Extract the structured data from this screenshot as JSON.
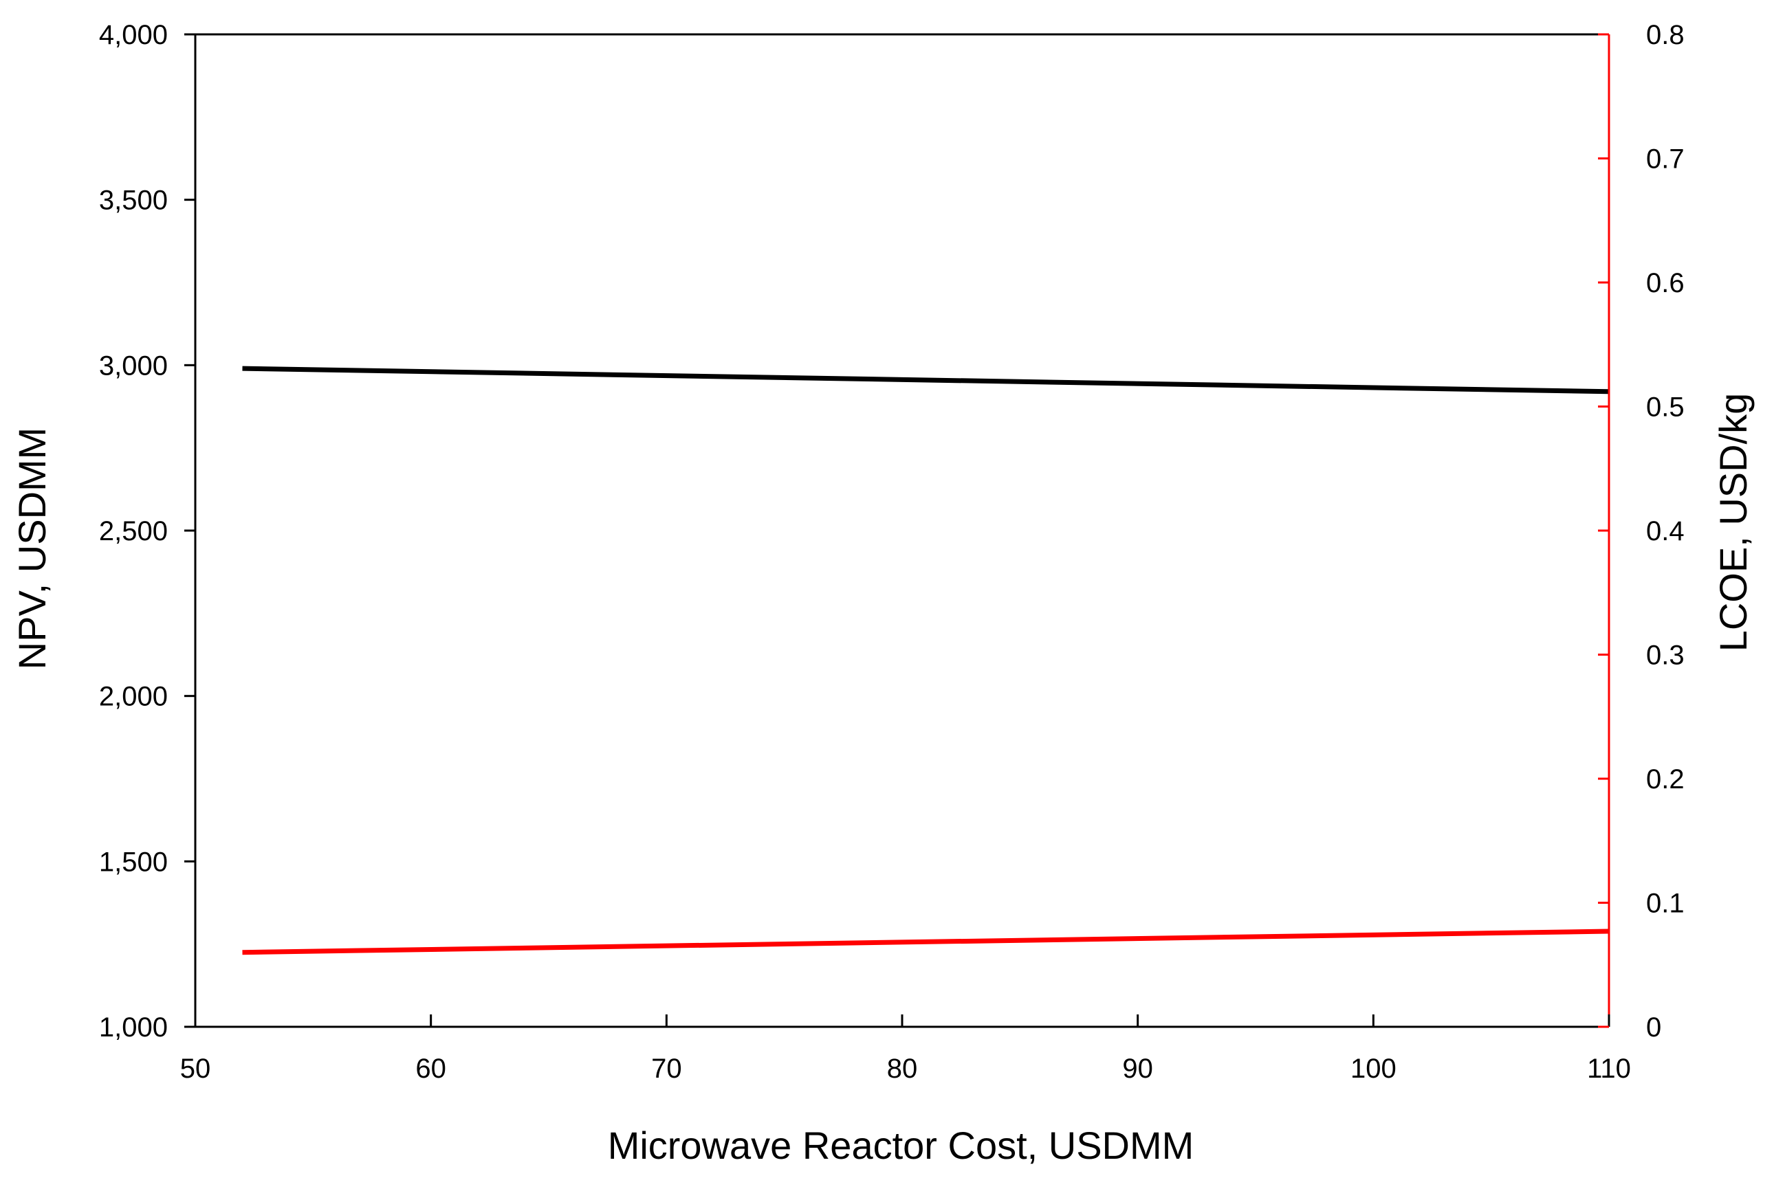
{
  "chart_data": {
    "type": "line",
    "title": "",
    "xlabel": "Microwave Reactor Cost, USDMM",
    "ylabel": "NPV, USDMM",
    "y2label": "LCOE, USD/kg",
    "xlim": [
      50,
      110
    ],
    "ylim": [
      1000,
      4000
    ],
    "y2lim": [
      0,
      0.8
    ],
    "x_ticks": [
      "50",
      "60",
      "70",
      "80",
      "90",
      "100",
      "110"
    ],
    "y_ticks": [
      "1,000",
      "1,500",
      "2,000",
      "2,500",
      "3,000",
      "3,500",
      "4,000"
    ],
    "y2_ticks": [
      "0",
      "0.1",
      "0.2",
      "0.3",
      "0.4",
      "0.5",
      "0.6",
      "0.7",
      "0.8"
    ],
    "grid": false,
    "legend": "none",
    "series": [
      {
        "axis": "left",
        "color": "#000000",
        "x": [
          52,
          110
        ],
        "values": [
          2990,
          2920
        ]
      },
      {
        "axis": "right",
        "color": "#ff0000",
        "x": [
          52,
          110
        ],
        "values": [
          0.06,
          0.077
        ]
      }
    ]
  }
}
